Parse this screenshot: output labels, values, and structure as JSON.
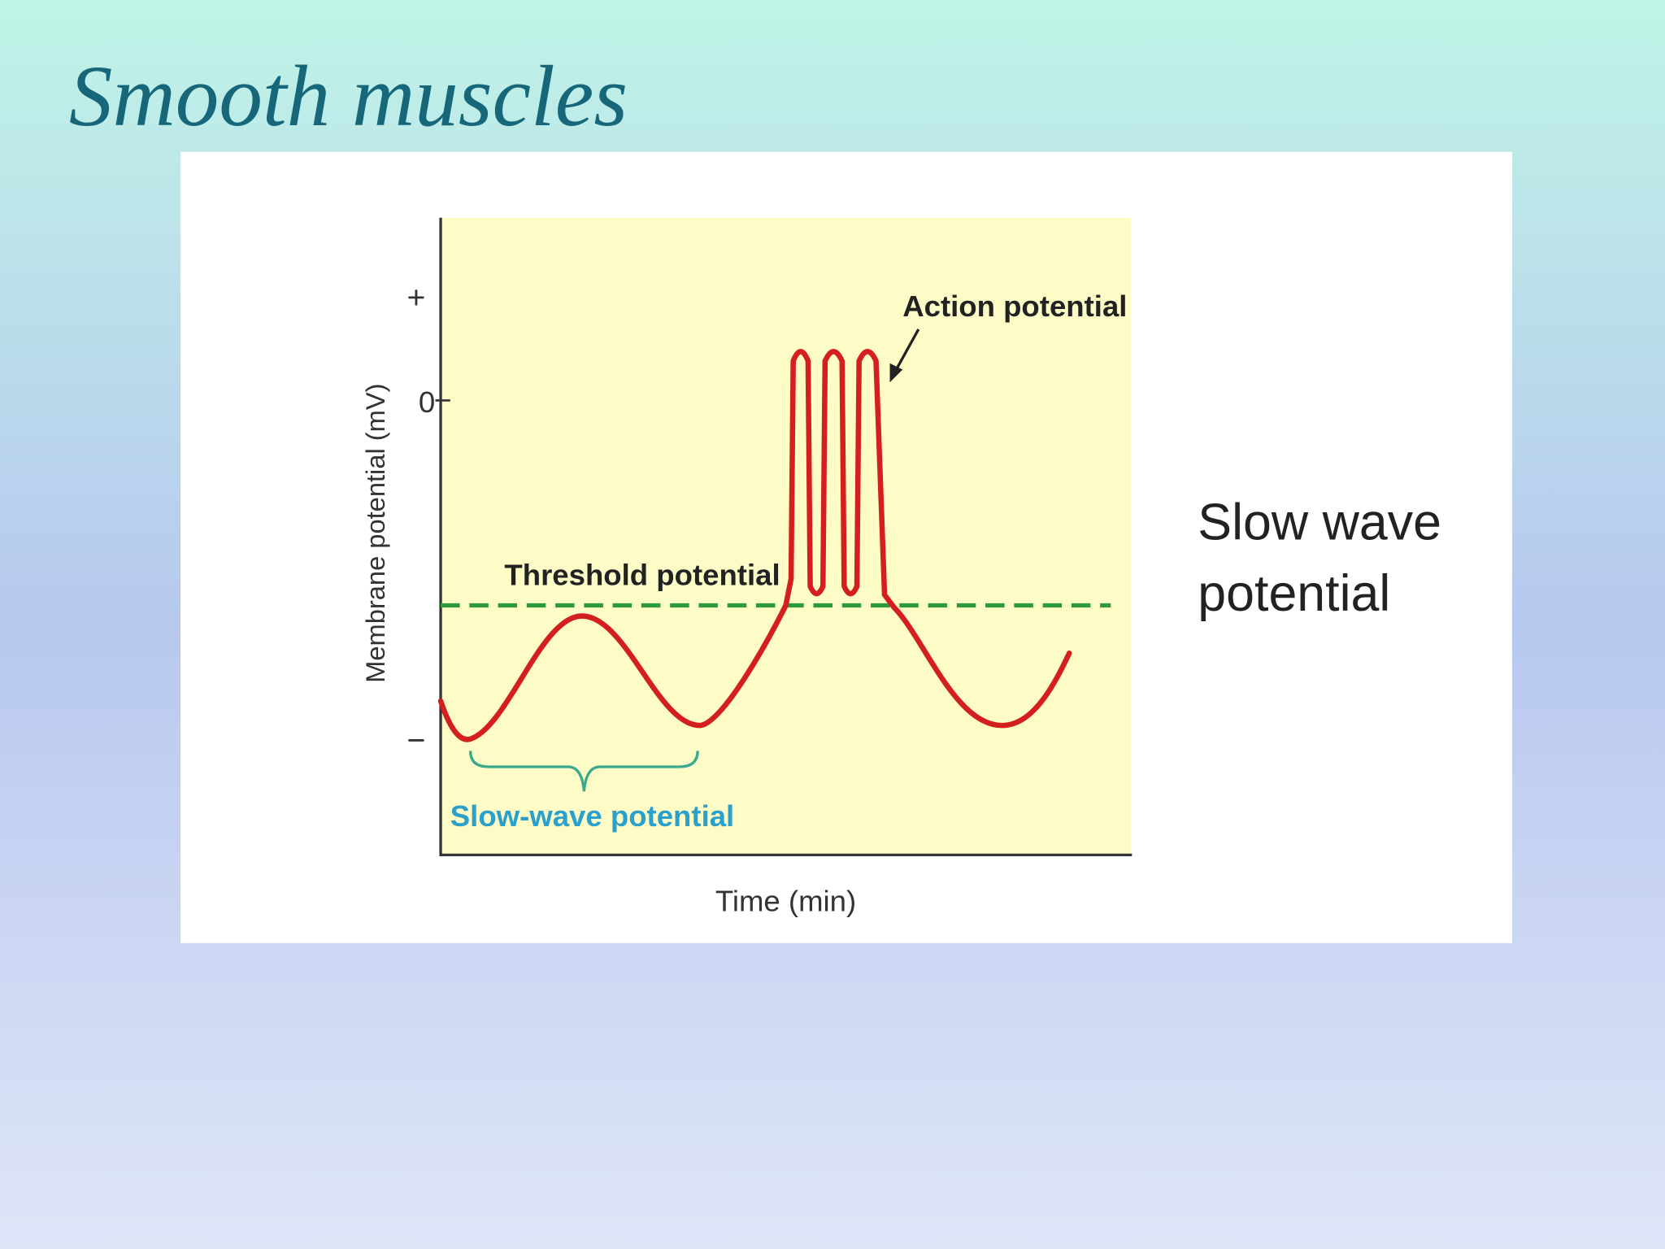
{
  "title": "Smooth muscles",
  "diagram": {
    "y_axis_label": "Membrane potential (mV)",
    "y_ticks": [
      "+",
      "0",
      "−"
    ],
    "x_axis_label": "Time (min)",
    "annotations": {
      "action_potential": "Action potential",
      "threshold_potential": "Threshold potential",
      "slow_wave_potential": "Slow-wave potential"
    }
  },
  "side_label": {
    "lines": [
      "Slow wave",
      "potential"
    ]
  }
}
